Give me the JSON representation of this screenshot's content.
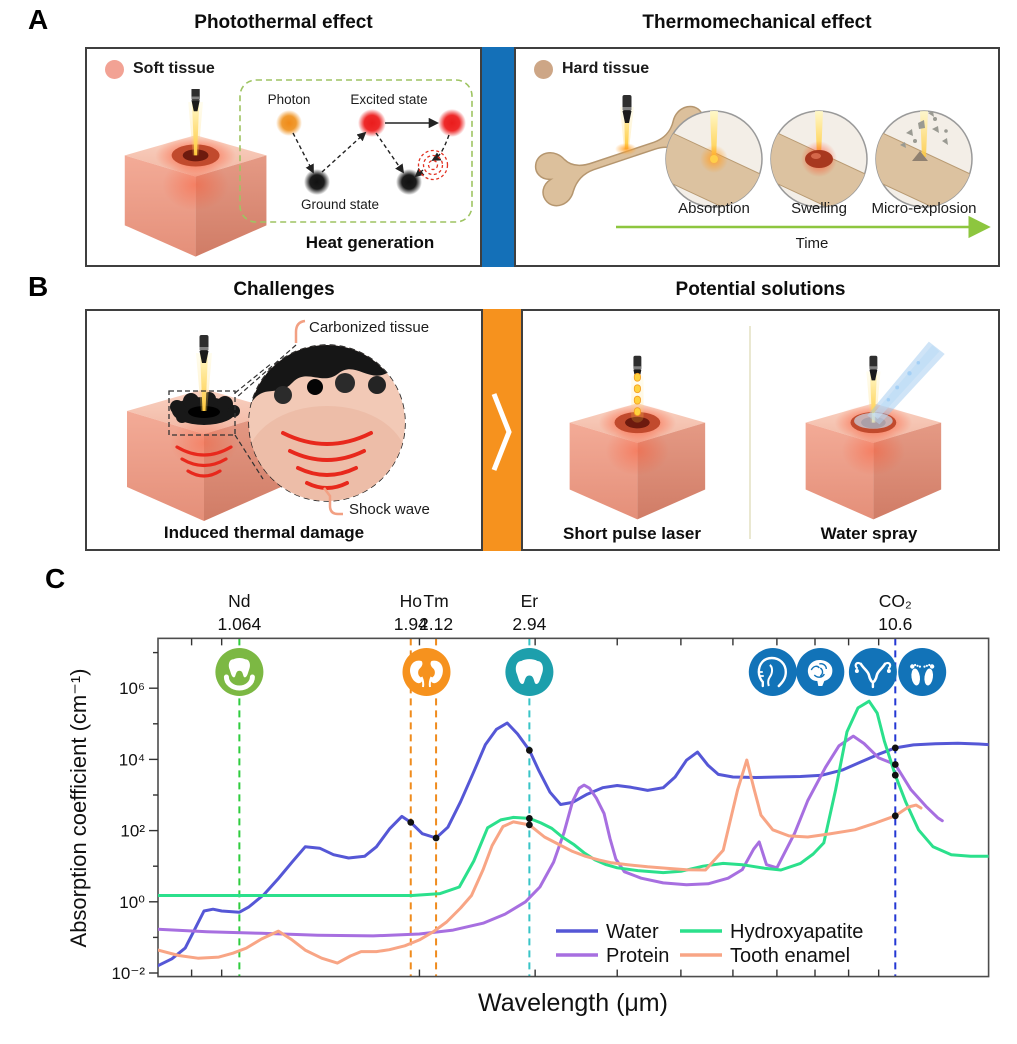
{
  "colors": {
    "divider_a": "#1470b8",
    "divider_b": "#f6921e",
    "soft_tissue_swatch": "#f2a294",
    "hard_tissue_swatch": "#cda686",
    "time_arrow": "#8dc63f",
    "heat_box_border": "#9ec462",
    "shock_wave": "#e8281c",
    "bracket": "#f2a083"
  },
  "panel_a": {
    "letter": "A",
    "left": {
      "title": "Photothermal effect",
      "swatch_label": "Soft tissue",
      "diagram": {
        "photon_label": "Photon",
        "excited_label": "Excited state",
        "ground_label": "Ground state",
        "caption": "Heat generation"
      }
    },
    "right": {
      "title": "Thermomechanical effect",
      "swatch_label": "Hard tissue",
      "stages": [
        "Absorption",
        "Swelling",
        "Micro-explosion"
      ],
      "time_label": "Time"
    }
  },
  "panel_b": {
    "letter": "B",
    "left": {
      "title": "Challenges",
      "carbonized_label": "Carbonized tissue",
      "shock_label": "Shock wave",
      "caption": "Induced thermal damage"
    },
    "right": {
      "title": "Potential solutions",
      "solution_labels": [
        "Short pulse laser",
        "Water spray"
      ]
    }
  },
  "panel_c": {
    "letter": "C"
  },
  "chart_data": {
    "type": "line",
    "title": "",
    "xlabel": "Wavelength (μm)",
    "ylabel": "Absorption coefficient (cm⁻¹)",
    "x_scale": "log",
    "y_scale": "log",
    "grid": false,
    "xlim_um": [
      0.8,
      14.7
    ],
    "ylim_exp": [
      -2.1,
      7.4
    ],
    "y_ticks": [
      {
        "label": "10⁻²",
        "exp": -2
      },
      {
        "label": "10⁰",
        "exp": 0
      },
      {
        "label": "10²",
        "exp": 2
      },
      {
        "label": "10⁴",
        "exp": 4
      },
      {
        "label": "10⁶",
        "exp": 6
      }
    ],
    "y_minor_exp": [
      -1,
      1,
      3,
      5,
      7
    ],
    "x_tick_um": [
      0.9,
      1,
      2,
      3,
      4,
      5,
      6,
      7,
      8,
      9,
      10
    ],
    "laser_lines": [
      {
        "name": "Nd",
        "wavelength_label": "1.064",
        "wavelength_um": 1.064,
        "color": "#2fcc3e"
      },
      {
        "name": "Ho",
        "wavelength_label": "1.94",
        "wavelength_um": 1.94,
        "color": "#ef8b1d"
      },
      {
        "name": "Tm",
        "wavelength_label": "2.12",
        "wavelength_um": 2.12,
        "color": "#ef8b1d"
      },
      {
        "name": "Er",
        "wavelength_label": "2.94",
        "wavelength_um": 2.94,
        "color": "#38c4c6"
      },
      {
        "name": "CO₂",
        "wavelength_label": "10.6",
        "wavelength_um": 10.6,
        "color": "#2438d4"
      }
    ],
    "icons": [
      {
        "glyph": "tooth-cradle-icon",
        "x_um": 1.064,
        "color": "#7cb843"
      },
      {
        "glyph": "kidneys-icon",
        "x_um": 2.05,
        "color": "#f6921e"
      },
      {
        "glyph": "tooth-icon",
        "x_um": 2.94,
        "color": "#1d9fac"
      },
      {
        "glyph": "head-icon",
        "x_um": 6.9,
        "color": "#1273b8"
      },
      {
        "glyph": "brain-icon",
        "x_um": 8.15,
        "color": "#1273b8"
      },
      {
        "glyph": "uterus-icon",
        "x_um": 9.8,
        "color": "#1273b8"
      },
      {
        "glyph": "feet-icon",
        "x_um": 11.65,
        "color": "#1273b8"
      }
    ],
    "series": [
      {
        "name": "Water",
        "color": "#5557d6",
        "points": [
          [
            0.8,
            0.016
          ],
          [
            0.84,
            0.025
          ],
          [
            0.88,
            0.05
          ],
          [
            0.91,
            0.17
          ],
          [
            0.94,
            0.55
          ],
          [
            0.97,
            0.62
          ],
          [
            1.0,
            0.55
          ],
          [
            1.064,
            0.51
          ],
          [
            1.1,
            0.72
          ],
          [
            1.16,
            1.6
          ],
          [
            1.22,
            4.5
          ],
          [
            1.28,
            13
          ],
          [
            1.34,
            35
          ],
          [
            1.41,
            32
          ],
          [
            1.48,
            21
          ],
          [
            1.56,
            17
          ],
          [
            1.65,
            19
          ],
          [
            1.72,
            35
          ],
          [
            1.8,
            110
          ],
          [
            1.88,
            250
          ],
          [
            1.94,
            170
          ],
          [
            2.02,
            82
          ],
          [
            2.12,
            62
          ],
          [
            2.21,
            125
          ],
          [
            2.31,
            650
          ],
          [
            2.42,
            4500
          ],
          [
            2.52,
            26000
          ],
          [
            2.62,
            70000
          ],
          [
            2.72,
            105000
          ],
          [
            2.82,
            52000
          ],
          [
            2.94,
            18000
          ],
          [
            3.04,
            4800
          ],
          [
            3.16,
            1200
          ],
          [
            3.28,
            540
          ],
          [
            3.42,
            620
          ],
          [
            3.6,
            1050
          ],
          [
            3.8,
            1600
          ],
          [
            4.0,
            1850
          ],
          [
            4.2,
            1650
          ],
          [
            4.45,
            1350
          ],
          [
            4.7,
            1600
          ],
          [
            4.9,
            3200
          ],
          [
            5.1,
            9500
          ],
          [
            5.3,
            16000
          ],
          [
            5.5,
            6800
          ],
          [
            5.7,
            3800
          ],
          [
            6.0,
            3200
          ],
          [
            6.5,
            3100
          ],
          [
            7.0,
            3200
          ],
          [
            7.6,
            3300
          ],
          [
            8.2,
            3600
          ],
          [
            8.8,
            5000
          ],
          [
            9.4,
            8500
          ],
          [
            10.0,
            14000
          ],
          [
            10.6,
            21000
          ],
          [
            11.3,
            25500
          ],
          [
            12.2,
            27500
          ],
          [
            13.2,
            28500
          ],
          [
            14.2,
            27000
          ],
          [
            14.7,
            26000
          ]
        ]
      },
      {
        "name": "Protein",
        "color": "#a76fe0",
        "points": [
          [
            0.8,
            0.17
          ],
          [
            0.95,
            0.145
          ],
          [
            1.15,
            0.13
          ],
          [
            1.4,
            0.115
          ],
          [
            1.7,
            0.11
          ],
          [
            2.0,
            0.125
          ],
          [
            2.25,
            0.16
          ],
          [
            2.5,
            0.25
          ],
          [
            2.7,
            0.45
          ],
          [
            2.9,
            1.0
          ],
          [
            3.05,
            2.6
          ],
          [
            3.2,
            13
          ],
          [
            3.32,
            90
          ],
          [
            3.42,
            650
          ],
          [
            3.5,
            1550
          ],
          [
            3.56,
            1900
          ],
          [
            3.63,
            1550
          ],
          [
            3.72,
            800
          ],
          [
            3.82,
            300
          ],
          [
            3.9,
            60
          ],
          [
            3.98,
            16
          ],
          [
            4.1,
            7
          ],
          [
            4.35,
            4.6
          ],
          [
            4.7,
            3.4
          ],
          [
            5.1,
            3.0
          ],
          [
            5.5,
            3.2
          ],
          [
            5.9,
            4.6
          ],
          [
            6.2,
            8
          ],
          [
            6.45,
            30
          ],
          [
            6.58,
            48
          ],
          [
            6.75,
            11
          ],
          [
            7.0,
            9
          ],
          [
            7.45,
            85
          ],
          [
            7.8,
            700
          ],
          [
            8.3,
            6000
          ],
          [
            8.7,
            24000
          ],
          [
            9.15,
            45000
          ],
          [
            9.5,
            28000
          ],
          [
            10.0,
            11000
          ],
          [
            10.6,
            7200
          ],
          [
            11.2,
            1400
          ],
          [
            11.8,
            480
          ],
          [
            12.3,
            230
          ],
          [
            12.5,
            190
          ]
        ]
      },
      {
        "name": "Hydroxyapatite",
        "color": "#2be08c",
        "points": [
          [
            0.8,
            1.5
          ],
          [
            1.2,
            1.5
          ],
          [
            1.6,
            1.5
          ],
          [
            1.95,
            1.5
          ],
          [
            2.15,
            1.7
          ],
          [
            2.3,
            2.6
          ],
          [
            2.42,
            14
          ],
          [
            2.54,
            120
          ],
          [
            2.66,
            200
          ],
          [
            2.78,
            235
          ],
          [
            2.94,
            220
          ],
          [
            3.06,
            165
          ],
          [
            3.18,
            115
          ],
          [
            3.3,
            66
          ],
          [
            3.44,
            40
          ],
          [
            3.56,
            24
          ],
          [
            3.7,
            15
          ],
          [
            3.85,
            11
          ],
          [
            4.0,
            9
          ],
          [
            4.3,
            7.5
          ],
          [
            4.7,
            6.6
          ],
          [
            5.0,
            7.2
          ],
          [
            5.4,
            10
          ],
          [
            5.8,
            12
          ],
          [
            6.2,
            11
          ],
          [
            6.7,
            8.8
          ],
          [
            7.1,
            7.8
          ],
          [
            7.6,
            12
          ],
          [
            7.95,
            22
          ],
          [
            8.25,
            45
          ],
          [
            8.6,
            1400
          ],
          [
            8.95,
            60000
          ],
          [
            9.3,
            280000
          ],
          [
            9.67,
            430000
          ],
          [
            9.95,
            200000
          ],
          [
            10.2,
            33000
          ],
          [
            10.6,
            3600
          ],
          [
            11.0,
            620
          ],
          [
            11.5,
            105
          ],
          [
            12.1,
            35
          ],
          [
            12.9,
            21
          ],
          [
            13.8,
            19
          ],
          [
            14.7,
            19
          ]
        ]
      },
      {
        "name": "Tooth enamel",
        "color": "#f8a585",
        "points": [
          [
            0.8,
            0.044
          ],
          [
            0.86,
            0.031
          ],
          [
            0.92,
            0.026
          ],
          [
            0.99,
            0.028
          ],
          [
            1.04,
            0.036
          ],
          [
            1.09,
            0.05
          ],
          [
            1.15,
            0.09
          ],
          [
            1.22,
            0.15
          ],
          [
            1.28,
            0.085
          ],
          [
            1.34,
            0.044
          ],
          [
            1.42,
            0.026
          ],
          [
            1.5,
            0.019
          ],
          [
            1.57,
            0.03
          ],
          [
            1.63,
            0.04
          ],
          [
            1.72,
            0.04
          ],
          [
            1.8,
            0.045
          ],
          [
            1.9,
            0.058
          ],
          [
            2.0,
            0.085
          ],
          [
            2.1,
            0.145
          ],
          [
            2.2,
            0.27
          ],
          [
            2.31,
            0.67
          ],
          [
            2.4,
            1.5
          ],
          [
            2.5,
            8
          ],
          [
            2.58,
            38
          ],
          [
            2.68,
            130
          ],
          [
            2.78,
            175
          ],
          [
            2.94,
            145
          ],
          [
            3.1,
            66
          ],
          [
            3.25,
            42
          ],
          [
            3.42,
            26
          ],
          [
            3.58,
            19
          ],
          [
            3.75,
            15
          ],
          [
            3.92,
            12.5
          ],
          [
            4.15,
            11
          ],
          [
            4.45,
            9.6
          ],
          [
            4.75,
            8.8
          ],
          [
            5.1,
            7.9
          ],
          [
            5.45,
            7.8
          ],
          [
            5.8,
            28
          ],
          [
            6.1,
            1400
          ],
          [
            6.3,
            9600
          ],
          [
            6.45,
            1650
          ],
          [
            6.62,
            270
          ],
          [
            6.9,
            105
          ],
          [
            7.3,
            71
          ],
          [
            7.8,
            66
          ],
          [
            8.4,
            80
          ],
          [
            9.2,
            105
          ],
          [
            9.9,
            165
          ],
          [
            10.6,
            260
          ],
          [
            11.1,
            460
          ],
          [
            11.4,
            520
          ],
          [
            11.6,
            430
          ]
        ]
      }
    ],
    "markers_um_value": [
      [
        1.94,
        170
      ],
      [
        2.12,
        62
      ],
      [
        2.94,
        18000
      ],
      [
        2.94,
        220
      ],
      [
        2.94,
        145
      ],
      [
        10.6,
        21000
      ],
      [
        10.6,
        7200
      ],
      [
        10.6,
        3600
      ],
      [
        10.6,
        260
      ]
    ],
    "legend": {
      "position": "inside-bottom-right",
      "entries": [
        "Water",
        "Protein",
        "Hydroxyapatite",
        "Tooth enamel"
      ]
    }
  }
}
